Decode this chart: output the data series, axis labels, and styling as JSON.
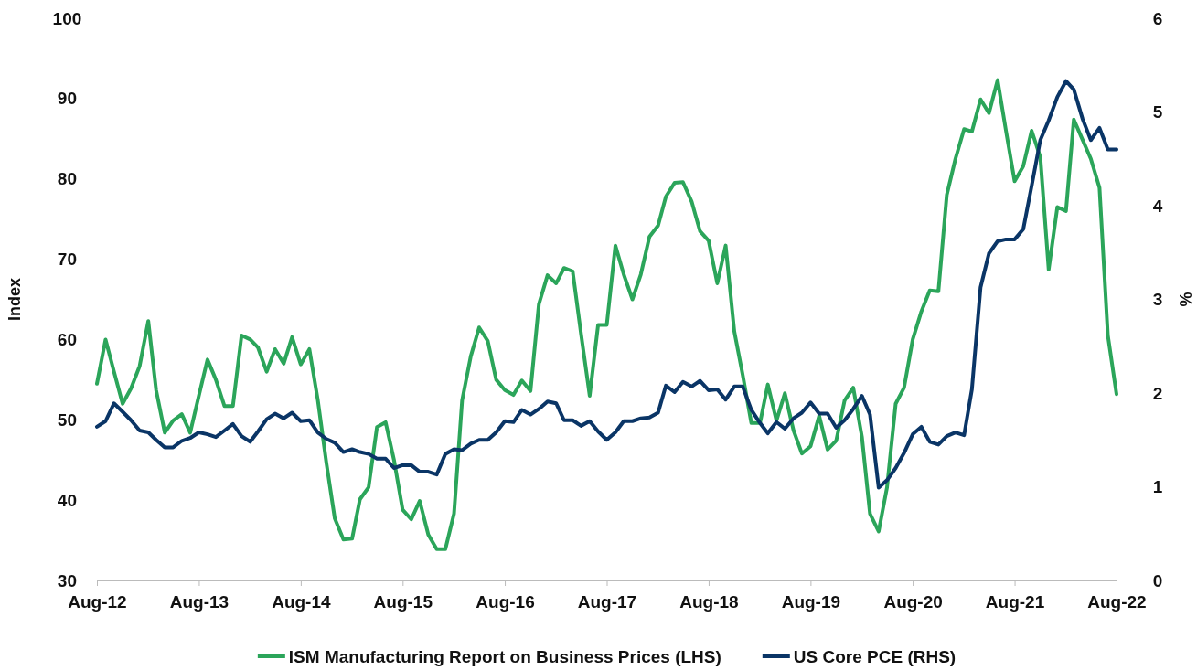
{
  "chart_data": {
    "type": "line",
    "ylabel": "Index",
    "y2label": "%",
    "legend": "bottom",
    "xlim": [
      "2012-08",
      "2022-08"
    ],
    "xticks": [
      {
        "value": "2012-08",
        "label": "Aug-12"
      },
      {
        "value": "2013-08",
        "label": "Aug-13"
      },
      {
        "value": "2014-08",
        "label": "Aug-14"
      },
      {
        "value": "2015-08",
        "label": "Aug-15"
      },
      {
        "value": "2016-08",
        "label": "Aug-16"
      },
      {
        "value": "2017-08",
        "label": "Aug-17"
      },
      {
        "value": "2018-08",
        "label": "Aug-18"
      },
      {
        "value": "2019-08",
        "label": "Aug-19"
      },
      {
        "value": "2020-08",
        "label": "Aug-20"
      },
      {
        "value": "2021-08",
        "label": "Aug-21"
      },
      {
        "value": "2022-08",
        "label": "Aug-22"
      }
    ],
    "ylim": [
      30,
      100
    ],
    "yticks": [
      30,
      40,
      50,
      60,
      70,
      80,
      90,
      100
    ],
    "y2lim": [
      0,
      6
    ],
    "y2ticks": [
      0,
      1,
      2,
      3,
      4,
      5,
      6
    ],
    "x": [
      "2012-08",
      "2012-09",
      "2012-10",
      "2012-11",
      "2012-12",
      "2013-01",
      "2013-02",
      "2013-03",
      "2013-04",
      "2013-05",
      "2013-06",
      "2013-07",
      "2013-08",
      "2013-09",
      "2013-10",
      "2013-11",
      "2013-12",
      "2014-01",
      "2014-02",
      "2014-03",
      "2014-04",
      "2014-05",
      "2014-06",
      "2014-07",
      "2014-08",
      "2014-09",
      "2014-10",
      "2014-11",
      "2014-12",
      "2015-01",
      "2015-02",
      "2015-03",
      "2015-04",
      "2015-05",
      "2015-06",
      "2015-07",
      "2015-08",
      "2015-09",
      "2015-10",
      "2015-11",
      "2015-12",
      "2016-01",
      "2016-02",
      "2016-03",
      "2016-04",
      "2016-05",
      "2016-06",
      "2016-07",
      "2016-08",
      "2016-09",
      "2016-10",
      "2016-11",
      "2016-12",
      "2017-01",
      "2017-02",
      "2017-03",
      "2017-04",
      "2017-05",
      "2017-06",
      "2017-07",
      "2017-08",
      "2017-09",
      "2017-10",
      "2017-11",
      "2017-12",
      "2018-01",
      "2018-02",
      "2018-03",
      "2018-04",
      "2018-05",
      "2018-06",
      "2018-07",
      "2018-08",
      "2018-09",
      "2018-10",
      "2018-11",
      "2018-12",
      "2019-01",
      "2019-02",
      "2019-03",
      "2019-04",
      "2019-05",
      "2019-06",
      "2019-07",
      "2019-08",
      "2019-09",
      "2019-10",
      "2019-11",
      "2019-12",
      "2020-01",
      "2020-02",
      "2020-03",
      "2020-04",
      "2020-05",
      "2020-06",
      "2020-07",
      "2020-08",
      "2020-09",
      "2020-10",
      "2020-11",
      "2020-12",
      "2021-01",
      "2021-02",
      "2021-03",
      "2021-04",
      "2021-05",
      "2021-06",
      "2021-07",
      "2021-08",
      "2021-09",
      "2021-10",
      "2021-11",
      "2021-12",
      "2022-01",
      "2022-02",
      "2022-03",
      "2022-04",
      "2022-05",
      "2022-06",
      "2022-07",
      "2022-08"
    ],
    "series": [
      {
        "name": "ISM Manufacturing Report on Business Prices (LHS)",
        "color": "#2ba55a",
        "values": [
          54.5,
          60,
          56,
          52,
          53.9,
          56.7,
          62.3,
          53.7,
          48.4,
          49.9,
          50.7,
          48.4,
          53,
          57.5,
          55,
          51.7,
          51.7,
          60.5,
          60,
          59,
          56,
          58.8,
          57,
          60.3,
          56.9,
          58.8,
          52.5,
          44.6,
          37.7,
          35.1,
          35.2,
          40.1,
          41.6,
          49.1,
          49.7,
          45,
          38.8,
          37.6,
          39.9,
          35.7,
          33.9,
          33.9,
          38.3,
          52.4,
          57.9,
          61.5,
          59.8,
          55,
          53.7,
          53.1,
          54.9,
          53.6,
          64.4,
          68,
          67,
          68.9,
          68.5,
          60.7,
          53,
          61.8,
          61.8,
          71.7,
          68.1,
          65,
          68.1,
          72.8,
          74.2,
          77.8,
          79.5,
          79.6,
          77.2,
          73.5,
          72.3,
          67,
          71.7,
          61,
          55.6,
          49.6,
          49.6,
          54.4,
          49.9,
          53.3,
          48.7,
          45.8,
          46.7,
          50.5,
          46.3,
          47.4,
          52.4,
          54,
          47.9,
          38.3,
          36.1,
          41.6,
          52,
          54,
          60,
          63.5,
          66.1,
          66,
          78,
          82.5,
          86.2,
          85.9,
          89.9,
          88.2,
          92.3,
          86,
          79.7,
          81.6,
          86,
          82.7,
          68.7,
          76.5,
          76,
          87.4,
          84.9,
          82.5,
          78.9,
          60.5,
          53.2
        ]
      },
      {
        "name": "US Core PCE (RHS)",
        "color": "#0a3566",
        "axis": "y2",
        "values": [
          1.64,
          1.7,
          1.89,
          1.8,
          1.71,
          1.6,
          1.58,
          1.5,
          1.42,
          1.42,
          1.49,
          1.52,
          1.58,
          1.56,
          1.53,
          1.6,
          1.67,
          1.54,
          1.48,
          1.59,
          1.72,
          1.78,
          1.73,
          1.79,
          1.7,
          1.71,
          1.58,
          1.51,
          1.47,
          1.37,
          1.4,
          1.37,
          1.35,
          1.3,
          1.3,
          1.2,
          1.23,
          1.23,
          1.16,
          1.16,
          1.13,
          1.35,
          1.4,
          1.39,
          1.46,
          1.5,
          1.5,
          1.58,
          1.7,
          1.69,
          1.82,
          1.77,
          1.83,
          1.91,
          1.89,
          1.71,
          1.71,
          1.65,
          1.7,
          1.59,
          1.5,
          1.58,
          1.7,
          1.7,
          1.73,
          1.74,
          1.79,
          2.08,
          2.01,
          2.12,
          2.07,
          2.13,
          2.03,
          2.04,
          1.93,
          2.07,
          2.07,
          1.82,
          1.68,
          1.57,
          1.69,
          1.62,
          1.73,
          1.79,
          1.9,
          1.78,
          1.78,
          1.63,
          1.71,
          1.83,
          1.97,
          1.77,
          0.99,
          1.07,
          1.2,
          1.36,
          1.56,
          1.64,
          1.48,
          1.45,
          1.54,
          1.58,
          1.55,
          2.04,
          3.13,
          3.49,
          3.62,
          3.64,
          3.64,
          3.75,
          4.21,
          4.7,
          4.91,
          5.16,
          5.33,
          5.24,
          4.93,
          4.7,
          4.83,
          4.6,
          4.6
        ]
      }
    ]
  }
}
